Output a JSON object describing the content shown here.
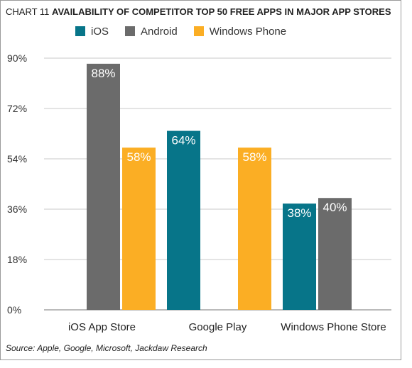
{
  "header": {
    "chart_number": "CHART 11",
    "title": "AVAILABILITY OF COMPETITOR TOP 50 FREE APPS IN MAJOR APP STORES"
  },
  "footer": {
    "source": "Source: Apple, Google, Microsoft, Jackdaw Research"
  },
  "chart_data": {
    "type": "bar",
    "title": "AVAILABILITY OF COMPETITOR TOP 50 FREE APPS IN MAJOR APP STORES",
    "categories": [
      "iOS App Store",
      "Google Play",
      "Windows Phone Store"
    ],
    "series": [
      {
        "name": "iOS",
        "color": "#077589",
        "values": [
          null,
          64,
          38
        ],
        "labels": [
          "",
          "64%",
          "38%"
        ]
      },
      {
        "name": "Android",
        "color": "#6b6b6b",
        "values": [
          88,
          null,
          40
        ],
        "labels": [
          "88%",
          "",
          "40%"
        ]
      },
      {
        "name": "Windows Phone",
        "color": "#fbae24",
        "values": [
          58,
          58,
          null
        ],
        "labels": [
          "58%",
          "58%",
          ""
        ]
      }
    ],
    "ylim": [
      0,
      90
    ],
    "yticks": [
      0,
      18,
      36,
      54,
      72,
      90
    ],
    "ytick_labels": [
      "0%",
      "18%",
      "36%",
      "54%",
      "72%",
      "90%"
    ],
    "xlabel": "",
    "ylabel": "",
    "grid": true,
    "legend": "top"
  }
}
